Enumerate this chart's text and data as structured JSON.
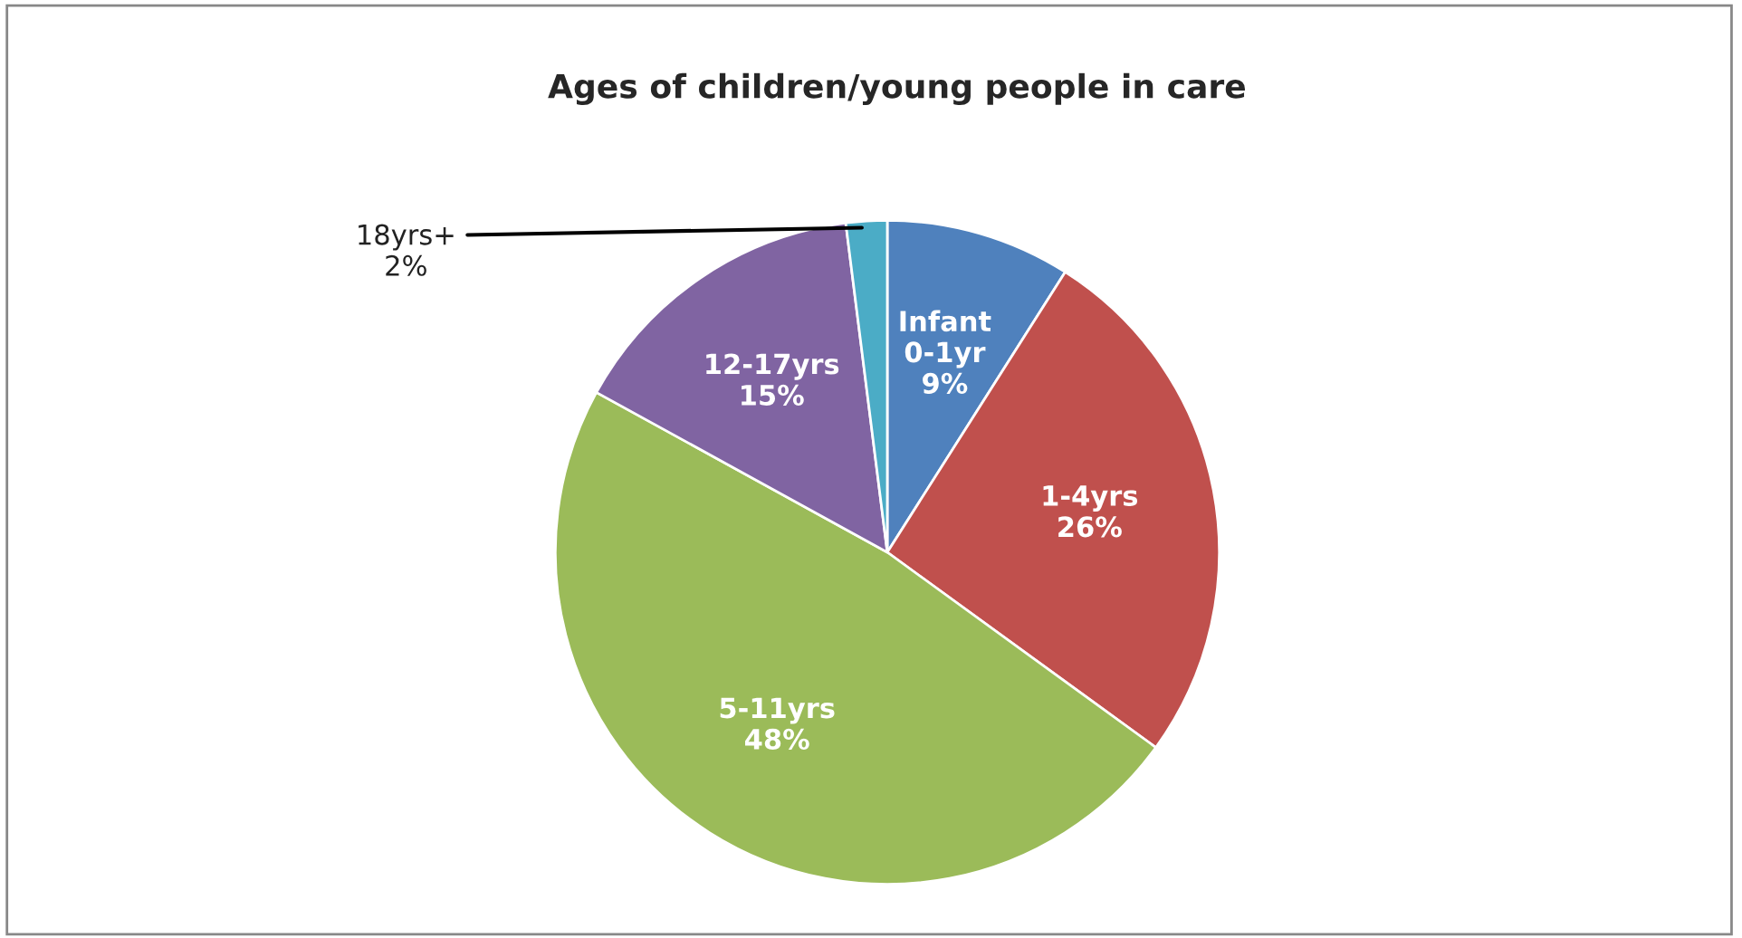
{
  "chart_data": {
    "type": "pie",
    "title": "Ages of children/young people in care",
    "categories": [
      "Infant\n0-1yr",
      "1-4yrs",
      "5-11yrs",
      "12-17yrs",
      "18yrs+"
    ],
    "values": [
      9,
      26,
      48,
      15,
      2
    ],
    "value_labels": [
      "9%",
      "26%",
      "48%",
      "15%",
      "2%"
    ],
    "colors": [
      "#4f81bd",
      "#c0504d",
      "#9bbb59",
      "#8064a2",
      "#4bacc6"
    ],
    "legend": false
  }
}
